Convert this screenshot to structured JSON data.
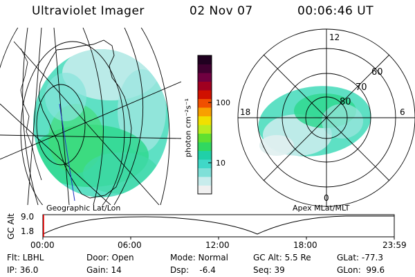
{
  "header": {
    "title": "Ultraviolet Imager",
    "date": "02 Nov 07",
    "time": "00:06:46 UT"
  },
  "left_panel": {
    "label": "Geographic Lat/Lon"
  },
  "right_panel": {
    "label": "Apex  MLat/MLT",
    "mlt_labels": {
      "top": "12",
      "bottom": "0",
      "left": "18",
      "right": "6"
    },
    "lat_labels": [
      "60",
      "70",
      "80"
    ]
  },
  "colorbar": {
    "unit_label": "photon cm⁻²s⁻¹",
    "ticks": [
      "100",
      "10"
    ],
    "colors": [
      "#f0f0f0",
      "#c8ecec",
      "#7fe0d8",
      "#40d8c8",
      "#20d0a8",
      "#30d860",
      "#60e030",
      "#b8ec20",
      "#f0e000",
      "#f8a000",
      "#f05000",
      "#d01000",
      "#a00020",
      "#700040",
      "#400030",
      "#200020"
    ]
  },
  "timeline": {
    "axis_label": "GC Alt",
    "y_labels": [
      "9.0",
      "1.8"
    ],
    "x_labels": [
      "00:00",
      "06:00",
      "12:00",
      "18:00",
      "23:59"
    ]
  },
  "info": {
    "flt": "Flt: LBHL",
    "ip": "IP: 36.0",
    "door": "Door: Open",
    "gain": "Gain: 14",
    "mode": "Mode: Normal",
    "dsp": "Dsp:    -6.4",
    "gcalt": "GC Alt: 5.5 Re",
    "seq": "Seq: 39",
    "glat": "GLat: -77.3",
    "glon": "GLon:  99.6"
  }
}
